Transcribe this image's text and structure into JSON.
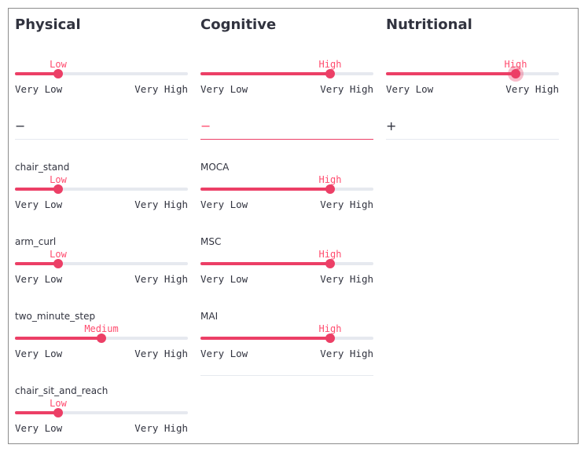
{
  "range_labels": {
    "min": "Very Low",
    "max": "Very High"
  },
  "columns": [
    {
      "title": "Physical",
      "main_slider": {
        "value_label": "Low",
        "level": 0.25
      },
      "expander_symbol": "−",
      "sub_sliders": [
        {
          "label": "chair_stand",
          "value_label": "Low",
          "level": 0.25
        },
        {
          "label": "arm_curl",
          "value_label": "Low",
          "level": 0.25
        },
        {
          "label": "two_minute_step",
          "value_label": "Medium",
          "level": 0.5
        },
        {
          "label": "chair_sit_and_reach",
          "value_label": "Low",
          "level": 0.25
        }
      ]
    },
    {
      "title": "Cognitive",
      "main_slider": {
        "value_label": "High",
        "level": 0.75
      },
      "expander_symbol": "−",
      "sub_sliders": [
        {
          "label": "MOCA",
          "value_label": "High",
          "level": 0.75
        },
        {
          "label": "MSC",
          "value_label": "High",
          "level": 0.75
        },
        {
          "label": "MAI",
          "value_label": "High",
          "level": 0.75
        }
      ]
    },
    {
      "title": "Nutritional",
      "main_slider": {
        "value_label": "High",
        "level": 0.75
      },
      "expander_symbol": "+",
      "sub_sliders": []
    }
  ],
  "colors": {
    "accent": "#ec3f66",
    "value_text": "#ff4b6e",
    "track": "#e6e9ef"
  }
}
